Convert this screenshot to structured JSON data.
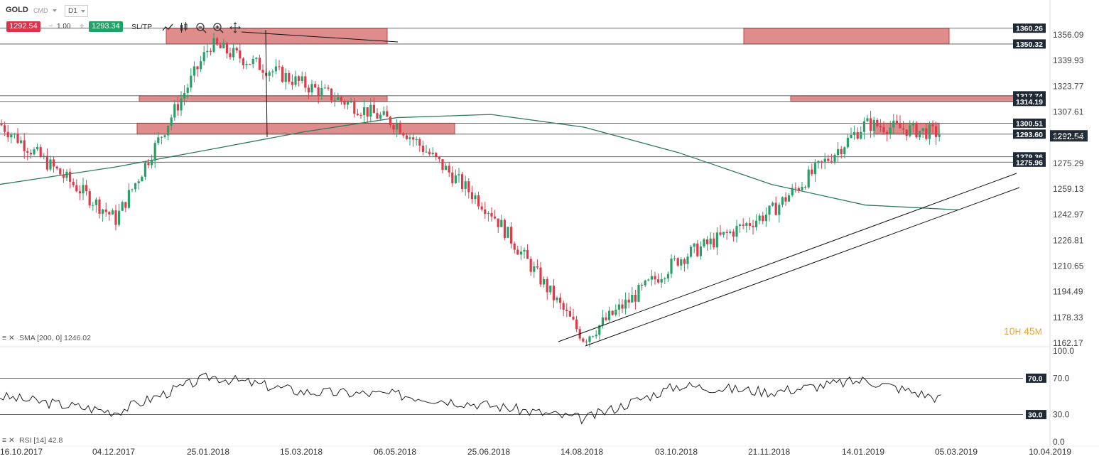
{
  "header": {
    "symbol": "GOLD",
    "market": "CMD",
    "timeframe": "D1",
    "bid": "1292.54",
    "volume": "1.00",
    "ask": "1293.34",
    "sltp": "SL/TP"
  },
  "indicators": {
    "sma_label": "SMA [200, 0] 1246.02",
    "rsi_label": "RSI [14] 42.8"
  },
  "countdown": {
    "hours": "10",
    "h": "H",
    "minutes": "45",
    "m": "M"
  },
  "colors": {
    "bull": "#26a269",
    "bear": "#e0394a",
    "zone": "#c9403f",
    "sma": "#2f7a5a"
  },
  "chart_data": [
    {
      "type": "line",
      "subtype": "candlestick",
      "symbol": "GOLD",
      "price_axis_ticks": [
        "1356.09",
        "1339.93",
        "1323.77",
        "1307.61",
        "1291.45",
        "1275.29",
        "1259.13",
        "1242.97",
        "1226.81",
        "1210.65",
        "1194.49",
        "1178.33",
        "1162.17"
      ],
      "ylim": [
        1160,
        1370
      ],
      "date_ticks": [
        "16.10.2017",
        "04.12.2017",
        "25.01.2018",
        "15.03.2018",
        "06.05.2018",
        "25.06.2018",
        "14.08.2018",
        "03.10.2018",
        "21.11.2018",
        "14.01.2019",
        "05.03.2019",
        "10.04.2019"
      ],
      "current_price": "1292.54",
      "horizontal_levels": [
        "1360.26",
        "1350.32",
        "1317.74",
        "1314.19",
        "1300.51",
        "1293.60",
        "1279.36",
        "1275.96"
      ],
      "series": [
        {
          "name": "SMA [200, 0]",
          "x": [
            "16.10.2017",
            "04.12.2017",
            "25.01.2018",
            "15.03.2018",
            "06.05.2018",
            "25.06.2018",
            "14.08.2018",
            "03.10.2018",
            "21.11.2018",
            "14.01.2019",
            "05.03.2019"
          ],
          "values": [
            1262,
            1273,
            1284,
            1295,
            1304,
            1306,
            1298,
            1282,
            1262,
            1249,
            1246.02
          ]
        },
        {
          "name": "Close",
          "x": [
            "16.10.2017",
            "04.12.2017",
            "25.01.2018",
            "15.03.2018",
            "06.05.2018",
            "25.06.2018",
            "14.08.2018",
            "03.10.2018",
            "21.11.2018",
            "14.01.2019",
            "05.03.2019"
          ],
          "values": [
            1300,
            1240,
            1350,
            1325,
            1300,
            1245,
            1165,
            1215,
            1245,
            1300,
            1292.54
          ]
        }
      ]
    },
    {
      "type": "line",
      "name": "RSI [14]",
      "current": 42.8,
      "ylim": [
        0,
        100
      ],
      "axis_ticks": [
        "100.0",
        "70.0",
        "30.0",
        "0.0"
      ],
      "levels": [
        "70.0",
        "30.0"
      ],
      "x": [
        "16.10.2017",
        "04.12.2017",
        "25.01.2018",
        "15.03.2018",
        "06.05.2018",
        "25.06.2018",
        "14.08.2018",
        "03.10.2018",
        "21.11.2018",
        "14.01.2019",
        "05.03.2019"
      ],
      "values": [
        50,
        33,
        72,
        55,
        52,
        40,
        25,
        62,
        55,
        68,
        42.8
      ]
    }
  ]
}
